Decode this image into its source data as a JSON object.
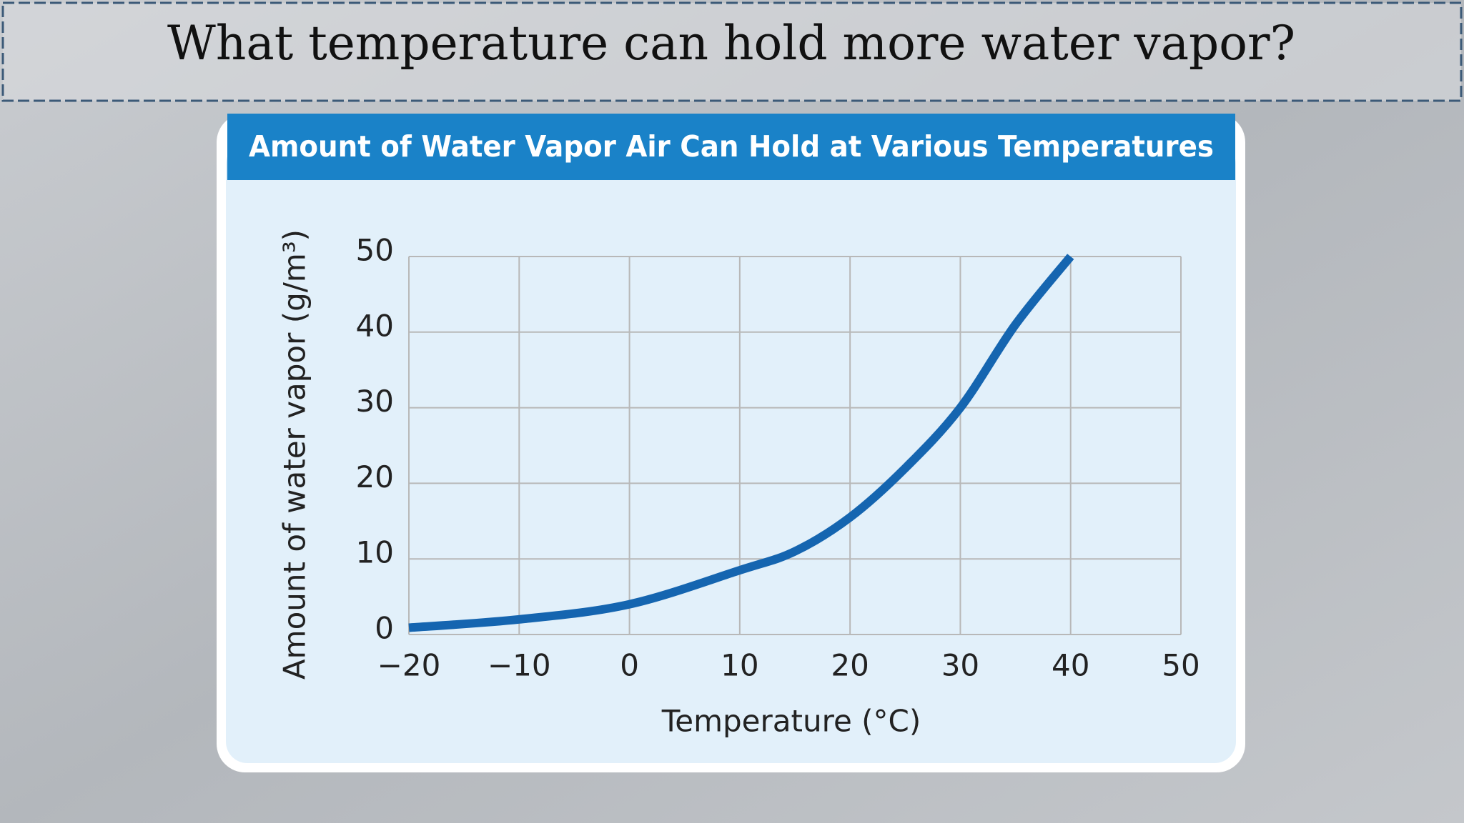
{
  "slide_title": "What temperature can hold more water vapor?",
  "chart_data": {
    "type": "line",
    "title": "Amount of Water Vapor Air Can Hold at Various Temperatures",
    "x_label": "Temperature (°C)",
    "y_label": "Amount of water vapor (g/m³)",
    "x": [
      -20,
      -10,
      0,
      10,
      15,
      20,
      25,
      30,
      35,
      40
    ],
    "series": [
      {
        "name": "Water vapor",
        "color": "#1565b0",
        "values": [
          0.9,
          2,
          4,
          8.5,
          11,
          15.5,
          22,
          30,
          41,
          50
        ]
      }
    ],
    "xlim": [
      -20,
      50
    ],
    "xticks": [
      {
        "value": -20,
        "label": "−20"
      },
      {
        "value": -10,
        "label": "−10"
      },
      0,
      10,
      20,
      30,
      40,
      50
    ],
    "ylim": [
      0,
      50
    ],
    "yticks": [
      0,
      10,
      20,
      30,
      40,
      50
    ],
    "grid": true
  }
}
